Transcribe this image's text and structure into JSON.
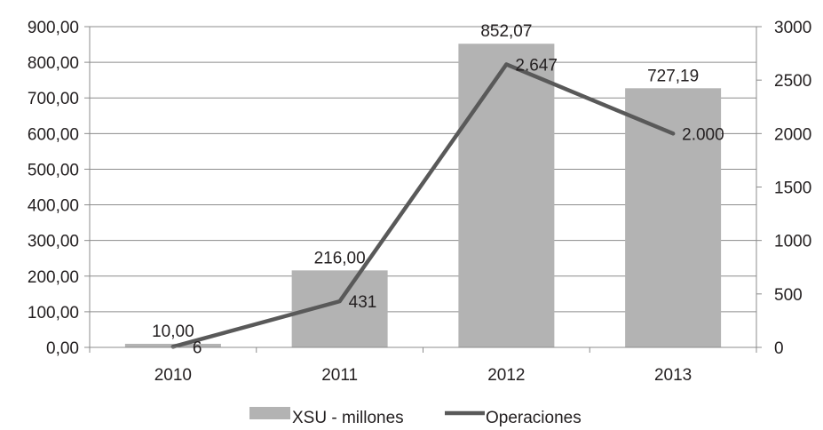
{
  "chart_data": {
    "type": "bar",
    "categories": [
      "2010",
      "2011",
      "2012",
      "2013"
    ],
    "series": [
      {
        "name": "XSU - millones",
        "type": "bar",
        "axis": "left",
        "values": [
          10.0,
          216.0,
          852.07,
          727.19
        ],
        "labels": [
          "10,00",
          "216,00",
          "852,07",
          "727,19"
        ],
        "color": "#b3b3b3"
      },
      {
        "name": "Operaciones",
        "type": "line",
        "axis": "right",
        "values": [
          6,
          431,
          2647,
          2000
        ],
        "labels": [
          "6",
          "431",
          "2.647",
          "2.000"
        ],
        "color": "#595959"
      }
    ],
    "y_left": {
      "ylim": [
        0,
        900
      ],
      "ticks": [
        0,
        100,
        200,
        300,
        400,
        500,
        600,
        700,
        800,
        900
      ],
      "tick_labels": [
        "0,00",
        "100,00",
        "200,00",
        "300,00",
        "400,00",
        "500,00",
        "600,00",
        "700,00",
        "800,00",
        "900,00"
      ]
    },
    "y_right": {
      "ylim": [
        0,
        3000
      ],
      "ticks": [
        0,
        500,
        1000,
        1500,
        2000,
        2500,
        3000
      ],
      "tick_labels": [
        "0",
        "500",
        "1000",
        "1500",
        "2000",
        "2500",
        "3000"
      ]
    },
    "grid": true,
    "legend_position": "bottom",
    "title": "",
    "xlabel": "",
    "ylabel": ""
  }
}
